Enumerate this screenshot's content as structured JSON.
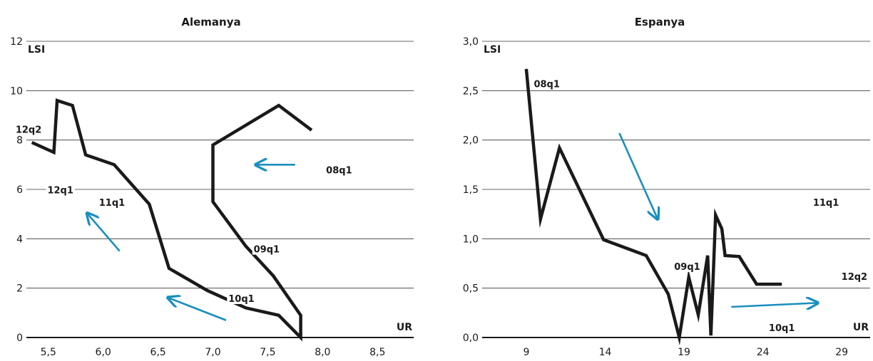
{
  "chart_data": [
    {
      "type": "line",
      "title": "Alemanya",
      "xlabel": "UR",
      "ylabel": "LSI",
      "xlim": [
        5.3,
        8.83
      ],
      "ylim": [
        0,
        12
      ],
      "x_ticks": [
        "5,5",
        "6,0",
        "6,5",
        "7,0",
        "7,5",
        "8,0",
        "8,5"
      ],
      "x_tick_values": [
        5.5,
        6.0,
        6.5,
        7.0,
        7.5,
        8.0,
        8.5
      ],
      "y_ticks": [
        "0",
        "2",
        "4",
        "6",
        "8",
        "10",
        "12"
      ],
      "y_tick_values": [
        0,
        2,
        4,
        6,
        8,
        10,
        12
      ],
      "grid": "horizontal",
      "line_color": "#1a1a1a",
      "arrow_color": "#1a8fbf",
      "series": [
        {
          "points": [
            [
              7.9,
              8.4
            ],
            [
              7.6,
              9.4
            ],
            [
              7.0,
              7.8
            ],
            [
              7.0,
              5.5
            ],
            [
              7.3,
              3.7
            ],
            [
              7.55,
              2.5
            ],
            [
              7.8,
              0.9
            ],
            [
              7.8,
              0.0
            ],
            [
              7.6,
              0.9
            ],
            [
              7.3,
              1.2
            ],
            [
              6.95,
              1.9
            ],
            [
              6.6,
              2.8
            ],
            [
              6.42,
              5.4
            ],
            [
              6.1,
              7.0
            ],
            [
              5.84,
              7.4
            ],
            [
              5.72,
              9.4
            ],
            [
              5.58,
              9.6
            ],
            [
              5.55,
              7.5
            ],
            [
              5.35,
              7.9
            ]
          ]
        }
      ],
      "annotations": [
        {
          "text": "08q1",
          "x": 8.15,
          "y": 6.7
        },
        {
          "text": "09q1",
          "x": 7.49,
          "y": 3.5
        },
        {
          "text": "10q1",
          "x": 7.26,
          "y": 1.5
        },
        {
          "text": "11q1",
          "x": 6.08,
          "y": 5.4
        },
        {
          "text": "12q1",
          "x": 5.61,
          "y": 5.9
        },
        {
          "text": "12q2",
          "x": 5.32,
          "y": 8.35
        }
      ],
      "arrows": [
        {
          "from": [
            7.75,
            7.0
          ],
          "to": [
            7.4,
            7.0
          ]
        },
        {
          "from": [
            6.15,
            3.5
          ],
          "to": [
            5.86,
            5.0
          ]
        },
        {
          "from": [
            7.12,
            0.7
          ],
          "to": [
            6.6,
            1.6
          ]
        }
      ]
    },
    {
      "type": "line",
      "title": "Espanya",
      "xlabel": "UR",
      "ylabel": "LSI",
      "xlim": [
        6.2,
        30.8
      ],
      "ylim": [
        0,
        3.0
      ],
      "x_ticks": [
        "9",
        "14",
        "19",
        "24",
        "29"
      ],
      "x_tick_values": [
        9,
        14,
        19,
        24,
        29
      ],
      "y_ticks": [
        "0,0",
        "0,5",
        "1,0",
        "1,5",
        "2,0",
        "2,5",
        "3,0"
      ],
      "y_tick_values": [
        0,
        0.5,
        1.0,
        1.5,
        2.0,
        2.5,
        3.0
      ],
      "grid": "horizontal",
      "line_color": "#1a1a1a",
      "arrow_color": "#1a8fbf",
      "series": [
        {
          "points": [
            [
              9.0,
              2.72
            ],
            [
              9.9,
              1.2
            ],
            [
              11.1,
              1.92
            ],
            [
              13.9,
              0.99
            ],
            [
              16.6,
              0.83
            ],
            [
              18.0,
              0.44
            ],
            [
              18.7,
              0.0
            ],
            [
              19.3,
              0.61
            ],
            [
              19.9,
              0.23
            ],
            [
              20.5,
              0.83
            ],
            [
              20.7,
              0.02
            ],
            [
              21.0,
              1.24
            ],
            [
              21.4,
              1.1
            ],
            [
              21.6,
              0.83
            ],
            [
              22.5,
              0.82
            ],
            [
              23.6,
              0.54
            ],
            [
              25.2,
              0.54
            ]
          ]
        }
      ],
      "annotations": [
        {
          "text": "08q1",
          "x": 10.3,
          "y": 2.55
        },
        {
          "text": "09q1",
          "x": 19.2,
          "y": 0.7
        },
        {
          "text": "10q1",
          "x": 25.2,
          "y": 0.08
        },
        {
          "text": "11q1",
          "x": 28.0,
          "y": 1.35
        },
        {
          "text": "12q2",
          "x": 29.8,
          "y": 0.6
        }
      ],
      "arrows": [
        {
          "from": [
            14.9,
            2.07
          ],
          "to": [
            17.3,
            1.21
          ]
        },
        {
          "from": [
            22.0,
            0.31
          ],
          "to": [
            27.4,
            0.35
          ]
        }
      ]
    }
  ]
}
